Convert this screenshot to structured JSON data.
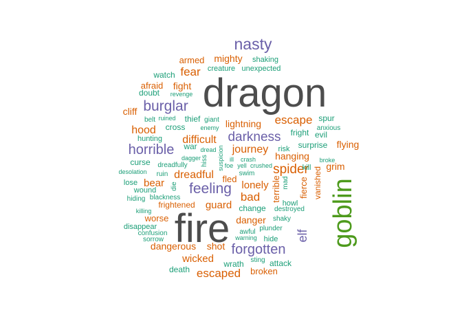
{
  "colors": {
    "dark_gray": "#4d4d4d",
    "green": "#4d9a1c",
    "purple": "#6a5fa8",
    "orange": "#d95f02",
    "teal": "#1b9e77"
  },
  "words": [
    {
      "text": "dragon",
      "color": "#4d4d4d",
      "weight": 1.0
    },
    {
      "text": "fire",
      "color": "#4d4d4d",
      "weight": 0.98
    },
    {
      "text": "goblin",
      "color": "#4d9a1c",
      "weight": 0.62
    },
    {
      "text": "nasty",
      "color": "#6a5fa8",
      "weight": 0.4
    },
    {
      "text": "burglar",
      "color": "#6a5fa8",
      "weight": 0.35
    },
    {
      "text": "feeling",
      "color": "#6a5fa8",
      "weight": 0.35
    },
    {
      "text": "horrible",
      "color": "#6a5fa8",
      "weight": 0.33
    },
    {
      "text": "forgotten",
      "color": "#6a5fa8",
      "weight": 0.33
    },
    {
      "text": "darkness",
      "color": "#6a5fa8",
      "weight": 0.32
    },
    {
      "text": "spider",
      "color": "#d95f02",
      "weight": 0.3
    },
    {
      "text": "elf",
      "color": "#6a5fa8",
      "weight": 0.3
    },
    {
      "text": "escaped",
      "color": "#d95f02",
      "weight": 0.29
    },
    {
      "text": "fear",
      "color": "#d95f02",
      "weight": 0.28
    },
    {
      "text": "escape",
      "color": "#d95f02",
      "weight": 0.28
    },
    {
      "text": "difficult",
      "color": "#d95f02",
      "weight": 0.27
    },
    {
      "text": "dreadful",
      "color": "#d95f02",
      "weight": 0.27
    },
    {
      "text": "hood",
      "color": "#d95f02",
      "weight": 0.26
    },
    {
      "text": "journey",
      "color": "#d95f02",
      "weight": 0.26
    },
    {
      "text": "bad",
      "color": "#d95f02",
      "weight": 0.26
    },
    {
      "text": "bear",
      "color": "#d95f02",
      "weight": 0.25
    },
    {
      "text": "lonely",
      "color": "#d95f02",
      "weight": 0.25
    },
    {
      "text": "guard",
      "color": "#d95f02",
      "weight": 0.25
    },
    {
      "text": "mighty",
      "color": "#d95f02",
      "weight": 0.24
    },
    {
      "text": "wicked",
      "color": "#d95f02",
      "weight": 0.24
    },
    {
      "text": "dangerous",
      "color": "#d95f02",
      "weight": 0.24
    },
    {
      "text": "fight",
      "color": "#d95f02",
      "weight": 0.23
    },
    {
      "text": "cliff",
      "color": "#d95f02",
      "weight": 0.23
    },
    {
      "text": "lightning",
      "color": "#d95f02",
      "weight": 0.23
    },
    {
      "text": "hanging",
      "color": "#d95f02",
      "weight": 0.23
    },
    {
      "text": "flying",
      "color": "#d95f02",
      "weight": 0.22
    },
    {
      "text": "grim",
      "color": "#d95f02",
      "weight": 0.22
    },
    {
      "text": "danger",
      "color": "#d95f02",
      "weight": 0.22
    },
    {
      "text": "shot",
      "color": "#d95f02",
      "weight": 0.22
    },
    {
      "text": "broken",
      "color": "#d95f02",
      "weight": 0.21
    },
    {
      "text": "armed",
      "color": "#d95f02",
      "weight": 0.21
    },
    {
      "text": "afraid",
      "color": "#d95f02",
      "weight": 0.21
    },
    {
      "text": "worse",
      "color": "#d95f02",
      "weight": 0.21
    },
    {
      "text": "terrible",
      "color": "#d95f02",
      "weight": 0.21
    },
    {
      "text": "fierce",
      "color": "#d95f02",
      "weight": 0.2
    },
    {
      "text": "vanished",
      "color": "#d95f02",
      "weight": 0.2
    },
    {
      "text": "fled",
      "color": "#d95f02",
      "weight": 0.2
    },
    {
      "text": "frightened",
      "color": "#d95f02",
      "weight": 0.19
    },
    {
      "text": "surprise",
      "color": "#1b9e77",
      "weight": 0.19
    },
    {
      "text": "watch",
      "color": "#1b9e77",
      "weight": 0.18
    },
    {
      "text": "cross",
      "color": "#1b9e77",
      "weight": 0.18
    },
    {
      "text": "thief",
      "color": "#1b9e77",
      "weight": 0.18
    },
    {
      "text": "curse",
      "color": "#1b9e77",
      "weight": 0.18
    },
    {
      "text": "war",
      "color": "#1b9e77",
      "weight": 0.18
    },
    {
      "text": "doubt",
      "color": "#1b9e77",
      "weight": 0.18
    },
    {
      "text": "spur",
      "color": "#1b9e77",
      "weight": 0.18
    },
    {
      "text": "evil",
      "color": "#1b9e77",
      "weight": 0.18
    },
    {
      "text": "fright",
      "color": "#1b9e77",
      "weight": 0.18
    },
    {
      "text": "death",
      "color": "#1b9e77",
      "weight": 0.18
    },
    {
      "text": "attack",
      "color": "#1b9e77",
      "weight": 0.18
    },
    {
      "text": "wrath",
      "color": "#1b9e77",
      "weight": 0.18
    },
    {
      "text": "change",
      "color": "#1b9e77",
      "weight": 0.18
    },
    {
      "text": "wound",
      "color": "#1b9e77",
      "weight": 0.17
    },
    {
      "text": "lose",
      "color": "#1b9e77",
      "weight": 0.17
    },
    {
      "text": "hide",
      "color": "#1b9e77",
      "weight": 0.17
    },
    {
      "text": "hunting",
      "color": "#1b9e77",
      "weight": 0.17
    },
    {
      "text": "disappear",
      "color": "#1b9e77",
      "weight": 0.17
    },
    {
      "text": "risk",
      "color": "#1b9e77",
      "weight": 0.17
    },
    {
      "text": "kill",
      "color": "#1b9e77",
      "weight": 0.17
    },
    {
      "text": "shaking",
      "color": "#1b9e77",
      "weight": 0.16
    },
    {
      "text": "creature",
      "color": "#1b9e77",
      "weight": 0.16
    },
    {
      "text": "unexpected",
      "color": "#1b9e77",
      "weight": 0.16
    },
    {
      "text": "howl",
      "color": "#1b9e77",
      "weight": 0.16
    },
    {
      "text": "plunder",
      "color": "#1b9e77",
      "weight": 0.16
    },
    {
      "text": "awful",
      "color": "#1b9e77",
      "weight": 0.16
    },
    {
      "text": "belt",
      "color": "#1b9e77",
      "weight": 0.16
    },
    {
      "text": "giant",
      "color": "#1b9e77",
      "weight": 0.16
    },
    {
      "text": "anxious",
      "color": "#1b9e77",
      "weight": 0.16
    },
    {
      "text": "hiss",
      "color": "#1b9e77",
      "weight": 0.16
    },
    {
      "text": "sting",
      "color": "#1b9e77",
      "weight": 0.16
    },
    {
      "text": "hiding",
      "color": "#1b9e77",
      "weight": 0.15
    },
    {
      "text": "dreadfully",
      "color": "#1b9e77",
      "weight": 0.15
    },
    {
      "text": "ruin",
      "color": "#1b9e77",
      "weight": 0.15
    },
    {
      "text": "die",
      "color": "#1b9e77",
      "weight": 0.15
    },
    {
      "text": "mad",
      "color": "#1b9e77",
      "weight": 0.15
    },
    {
      "text": "shaky",
      "color": "#1b9e77",
      "weight": 0.15
    },
    {
      "text": "sorrow",
      "color": "#1b9e77",
      "weight": 0.15
    },
    {
      "text": "confusion",
      "color": "#1b9e77",
      "weight": 0.15
    },
    {
      "text": "swim",
      "color": "#1b9e77",
      "weight": 0.15
    },
    {
      "text": "destroyed",
      "color": "#1b9e77",
      "weight": 0.15
    },
    {
      "text": "blackness",
      "color": "#1b9e77",
      "weight": 0.15
    },
    {
      "text": "revenge",
      "color": "#1b9e77",
      "weight": 0.14
    },
    {
      "text": "ruined",
      "color": "#1b9e77",
      "weight": 0.14
    },
    {
      "text": "enemy",
      "color": "#1b9e77",
      "weight": 0.14
    },
    {
      "text": "dread",
      "color": "#1b9e77",
      "weight": 0.14
    },
    {
      "text": "dagger",
      "color": "#1b9e77",
      "weight": 0.14
    },
    {
      "text": "ill",
      "color": "#1b9e77",
      "weight": 0.14
    },
    {
      "text": "crash",
      "color": "#1b9e77",
      "weight": 0.14
    },
    {
      "text": "foe",
      "color": "#1b9e77",
      "weight": 0.14
    },
    {
      "text": "yell",
      "color": "#1b9e77",
      "weight": 0.14
    },
    {
      "text": "crushed",
      "color": "#1b9e77",
      "weight": 0.14
    },
    {
      "text": "suspicion",
      "color": "#1b9e77",
      "weight": 0.14
    },
    {
      "text": "broke",
      "color": "#1b9e77",
      "weight": 0.14
    },
    {
      "text": "desolation",
      "color": "#1b9e77",
      "weight": 0.14
    },
    {
      "text": "killing",
      "color": "#1b9e77",
      "weight": 0.14
    },
    {
      "text": "warning",
      "color": "#1b9e77",
      "weight": 0.14
    }
  ]
}
